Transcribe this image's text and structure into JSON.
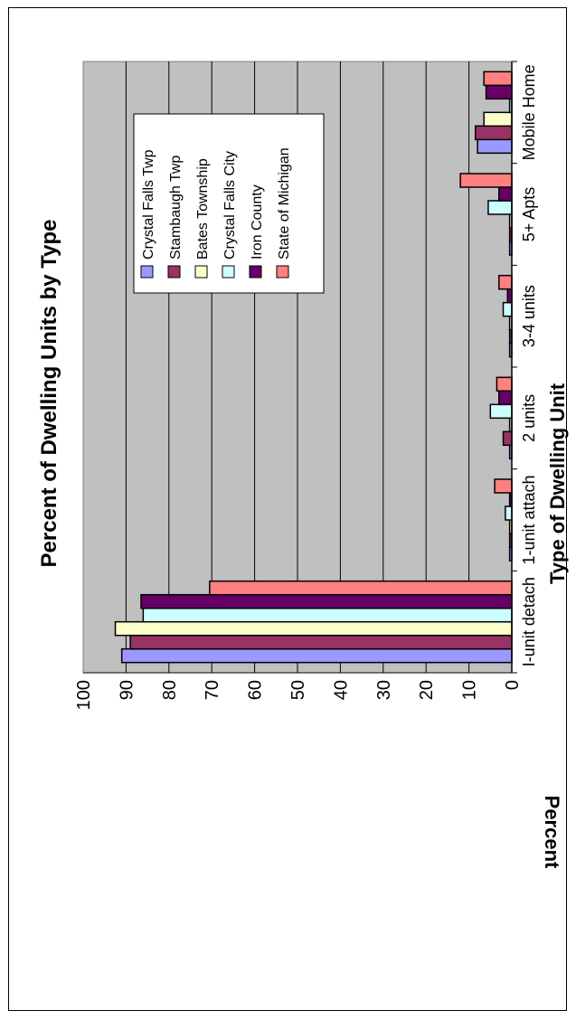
{
  "chart_data": {
    "type": "bar",
    "title": "Percent of Dwelling Units by Type",
    "xlabel": "Type of Dwelling Unit",
    "ylabel": "Percent",
    "ylim": [
      0,
      100
    ],
    "yticks": [
      "0",
      "10",
      "20",
      "30",
      "40",
      "50",
      "60",
      "70",
      "80",
      "90",
      "100"
    ],
    "grid": true,
    "legend_position": "top-right",
    "categories": [
      "I-unit detach",
      "1-unit attach",
      "2 units",
      "3-4 units",
      "5+ Apts",
      "Mobile Home"
    ],
    "series": [
      {
        "name": "Crystal Falls Twp",
        "color": "#9999ff",
        "values": [
          91,
          0.5,
          0.5,
          0.5,
          0.5,
          8
        ]
      },
      {
        "name": "Stambaugh Twp",
        "color": "#993366",
        "values": [
          89,
          0.5,
          2,
          0.5,
          0.5,
          8.5
        ]
      },
      {
        "name": "Bates Township",
        "color": "#ffffcc",
        "values": [
          92.5,
          0.5,
          0.5,
          0.5,
          0.5,
          6.5
        ]
      },
      {
        "name": "Crystal Falls City",
        "color": "#ccffff",
        "values": [
          86,
          1.5,
          5,
          2,
          5.5,
          0.5
        ]
      },
      {
        "name": "Iron County",
        "color": "#660066",
        "values": [
          86.5,
          0.5,
          3,
          1,
          3,
          6
        ]
      },
      {
        "name": "State of Michigan",
        "color": "#ff8080",
        "values": [
          70.5,
          4,
          3.5,
          3,
          12,
          6.5
        ]
      }
    ]
  }
}
